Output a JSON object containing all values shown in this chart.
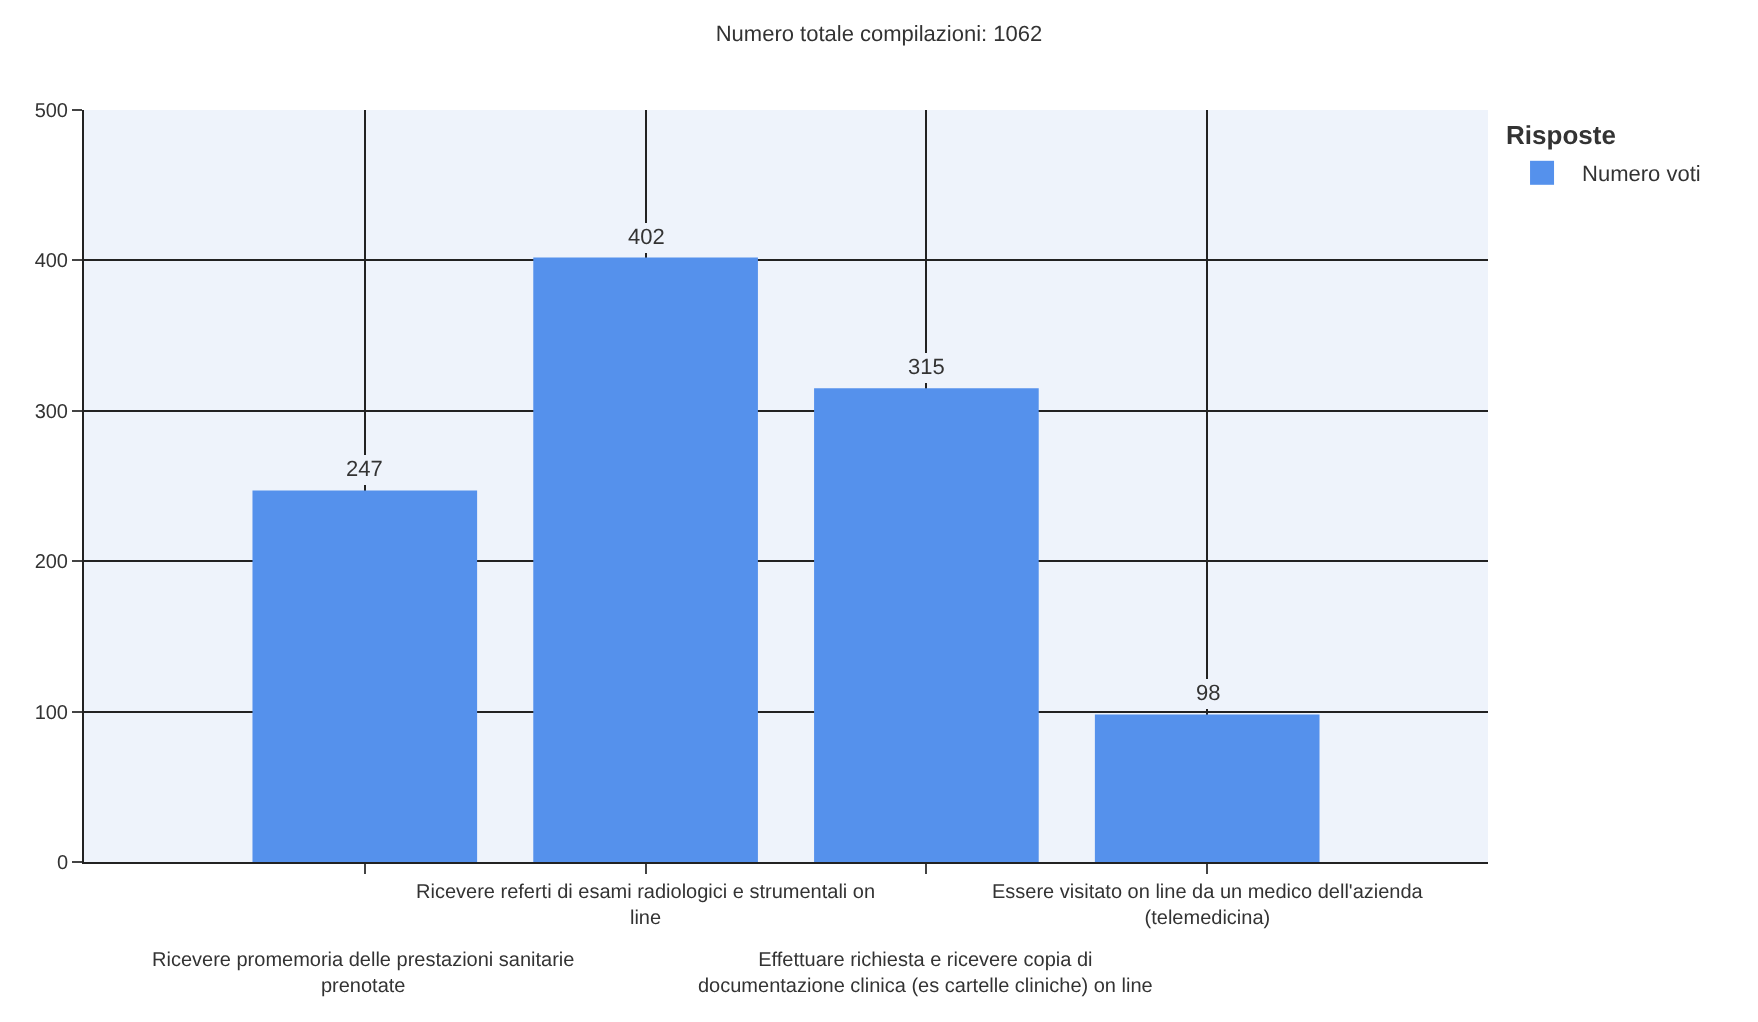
{
  "chart_data": {
    "type": "bar",
    "title": "Numero totale compilazioni: 1062",
    "categories": [
      "Ricevere promemoria delle prestazioni sanitarie\nprenotate",
      "Ricevere referti di esami radiologici e strumentali on\nline",
      "Effettuare richiesta e ricevere copia di\ndocumentazione clinica (es cartelle cliniche) on line",
      "Essere visitato on line da un medico dell'azienda\n(telemedicina)"
    ],
    "series": [
      {
        "name": "Numero voti",
        "color": "#5591ec",
        "values": [
          247,
          402,
          315,
          98
        ]
      }
    ],
    "legend_title": "Risposte",
    "legend": "top right",
    "ylim": [
      0,
      500
    ],
    "yticks": [
      0,
      100,
      200,
      300,
      400,
      500
    ],
    "grid": true,
    "data_labels": true
  }
}
